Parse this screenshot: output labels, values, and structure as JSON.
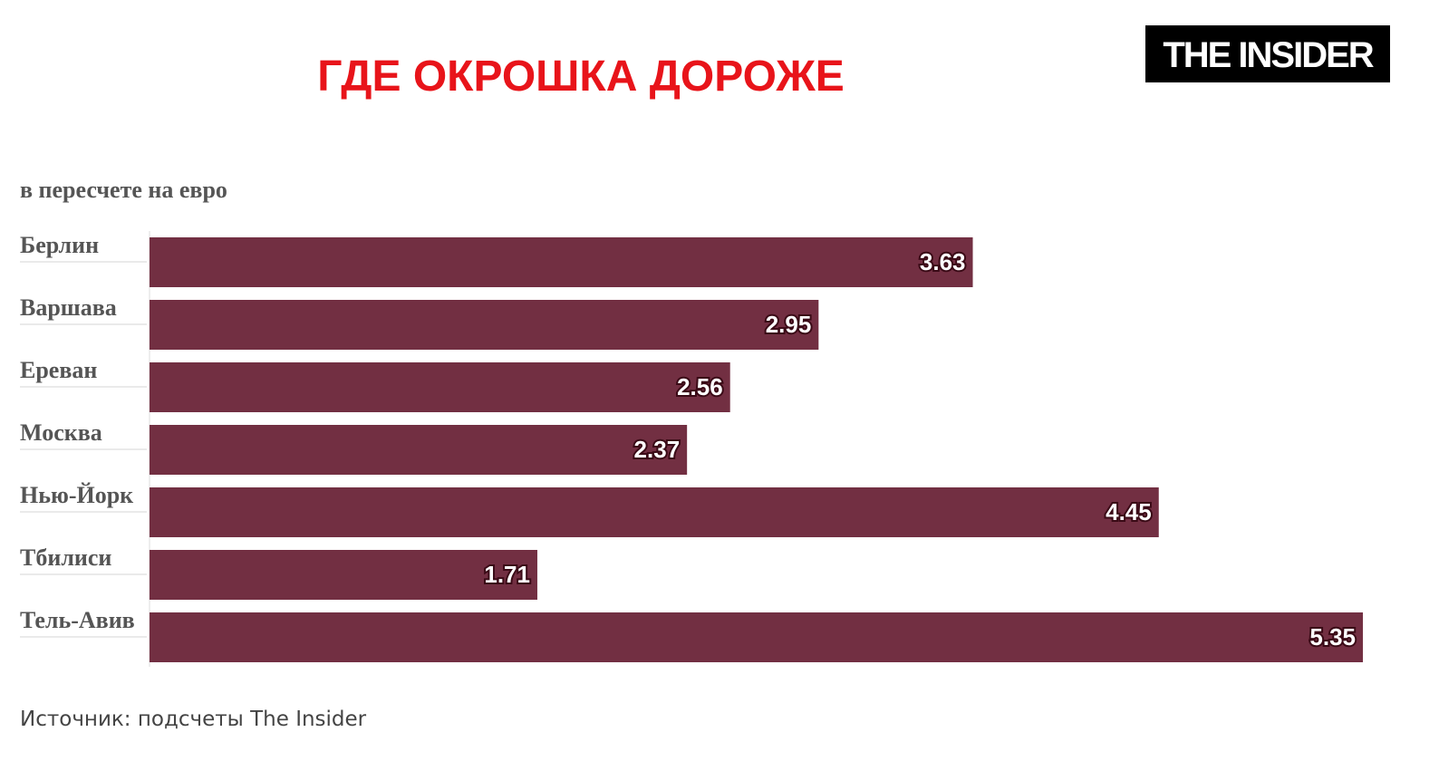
{
  "chart_data": {
    "type": "bar",
    "orientation": "horizontal",
    "title": "ГДЕ ОКРОШКА ДОРОЖЕ",
    "logo": "THE INSIDER",
    "subtitle": "в пересчете на евро",
    "source": "Источник: подсчеты The Insider",
    "categories": [
      "Берлин",
      "Варшава",
      "Ереван",
      "Москва",
      "Нью-Йорк",
      "Тбилиси",
      "Тель-Авив"
    ],
    "values": [
      3.63,
      2.95,
      2.56,
      2.37,
      4.45,
      1.71,
      5.35
    ],
    "color": "#722f42"
  }
}
